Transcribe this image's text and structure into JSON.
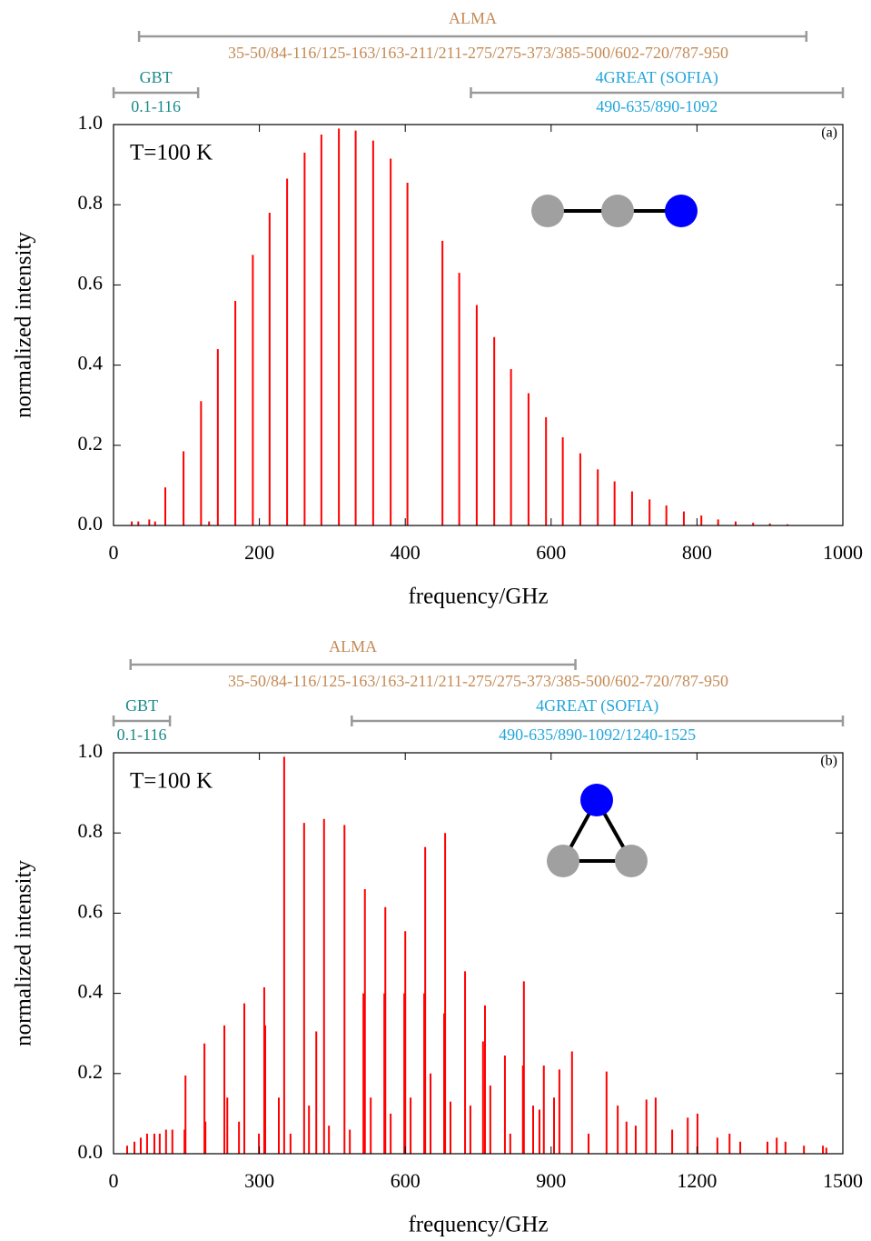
{
  "chart_data": [
    {
      "type": "stick",
      "panel_label": "(a)",
      "annotation": "T=100 K",
      "xlabel": "frequency/GHz",
      "ylabel": "normalized intensity",
      "xlim": [
        0,
        1000
      ],
      "xticks": [
        0,
        200,
        400,
        600,
        800,
        1000
      ],
      "ylim": [
        0,
        1
      ],
      "yticks": [
        {
          "value": 0,
          "label": "0.0"
        },
        0.2,
        0.4,
        0.6,
        0.8,
        {
          "value": 1,
          "label": "1.0"
        }
      ],
      "color": "#ff0000",
      "bands": [
        {
          "name": "ALMA",
          "ranges": "35-50/84-116/125-163/163-211/211-275/275-373/385-500/602-720/787-950",
          "span": [
            35,
            950
          ],
          "color": "#c48a55"
        },
        {
          "name": "GBT",
          "ranges": "0.1-116",
          "span": [
            0.1,
            116
          ],
          "color": "#1a8a8a"
        },
        {
          "name": "4GREAT (SOFIA)",
          "ranges": "490-635/890-1092",
          "span": [
            490,
            1092
          ],
          "color": "#22a6dc"
        }
      ],
      "x": [
        25,
        34,
        49,
        57,
        71,
        96,
        120,
        131,
        143,
        167,
        191,
        214,
        238,
        262,
        285,
        309,
        332,
        356,
        380,
        403,
        451,
        474,
        498,
        522,
        545,
        569,
        593,
        616,
        640,
        664,
        687,
        711,
        735,
        758,
        782,
        806,
        829,
        853,
        877,
        900,
        924
      ],
      "values": [
        0.01,
        0.01,
        0.015,
        0.01,
        0.095,
        0.185,
        0.31,
        0.01,
        0.44,
        0.56,
        0.675,
        0.78,
        0.865,
        0.93,
        0.975,
        0.99,
        0.985,
        0.96,
        0.915,
        0.855,
        0.71,
        0.63,
        0.55,
        0.47,
        0.39,
        0.33,
        0.27,
        0.22,
        0.18,
        0.14,
        0.11,
        0.085,
        0.065,
        0.05,
        0.035,
        0.025,
        0.015,
        0.01,
        0.007,
        0.005,
        0.003
      ]
    },
    {
      "type": "stick",
      "panel_label": "(b)",
      "annotation": "T=100 K",
      "xlabel": "frequency/GHz",
      "ylabel": "normalized intensity",
      "xlim": [
        0,
        1500
      ],
      "xticks": [
        0,
        300,
        600,
        900,
        1200,
        1500
      ],
      "ylim": [
        0,
        1
      ],
      "yticks": [
        {
          "value": 0,
          "label": "0.0"
        },
        0.2,
        0.4,
        0.6,
        0.8,
        {
          "value": 1,
          "label": "1.0"
        }
      ],
      "color": "#ff0000",
      "bands": [
        {
          "name": "ALMA",
          "ranges": "35-50/84-116/125-163/163-211/211-275/275-373/385-500/602-720/787-950",
          "span": [
            35,
            950
          ],
          "color": "#c48a55"
        },
        {
          "name": "GBT",
          "ranges": "0.1-116",
          "span": [
            0.1,
            116
          ],
          "color": "#1a8a8a"
        },
        {
          "name": "4GREAT (SOFIA)",
          "ranges": "490-635/890-1092/1240-1525",
          "span": [
            490,
            1525
          ],
          "color": "#22a6dc"
        }
      ],
      "x": [
        28,
        43,
        56,
        69,
        84,
        95,
        108,
        121,
        146,
        148,
        187,
        189,
        228,
        234,
        258,
        269,
        299,
        310,
        312,
        340,
        351,
        364,
        392,
        402,
        417,
        433,
        443,
        475,
        486,
        514,
        517,
        529,
        557,
        559,
        570,
        598,
        600,
        611,
        639,
        641,
        652,
        680,
        682,
        693,
        723,
        734,
        760,
        764,
        775,
        805,
        816,
        842,
        844,
        863,
        876,
        885,
        906,
        917,
        943,
        977,
        1014,
        1037,
        1055,
        1074,
        1096,
        1115,
        1149,
        1181,
        1201,
        1242,
        1267,
        1289,
        1345,
        1364,
        1382,
        1420,
        1459,
        1466
      ],
      "values": [
        0.02,
        0.03,
        0.04,
        0.05,
        0.05,
        0.05,
        0.06,
        0.06,
        0.06,
        0.195,
        0.275,
        0.08,
        0.32,
        0.14,
        0.08,
        0.375,
        0.05,
        0.415,
        0.32,
        0.14,
        0.99,
        0.05,
        0.825,
        0.12,
        0.305,
        0.835,
        0.07,
        0.82,
        0.06,
        0.4,
        0.66,
        0.14,
        0.4,
        0.615,
        0.1,
        0.4,
        0.555,
        0.14,
        0.4,
        0.765,
        0.2,
        0.35,
        0.8,
        0.13,
        0.455,
        0.12,
        0.28,
        0.37,
        0.17,
        0.245,
        0.05,
        0.22,
        0.43,
        0.12,
        0.11,
        0.22,
        0.14,
        0.21,
        0.255,
        0.05,
        0.205,
        0.12,
        0.08,
        0.07,
        0.135,
        0.14,
        0.06,
        0.09,
        0.1,
        0.04,
        0.05,
        0.03,
        0.03,
        0.04,
        0.03,
        0.02,
        0.02,
        0.015
      ]
    }
  ]
}
